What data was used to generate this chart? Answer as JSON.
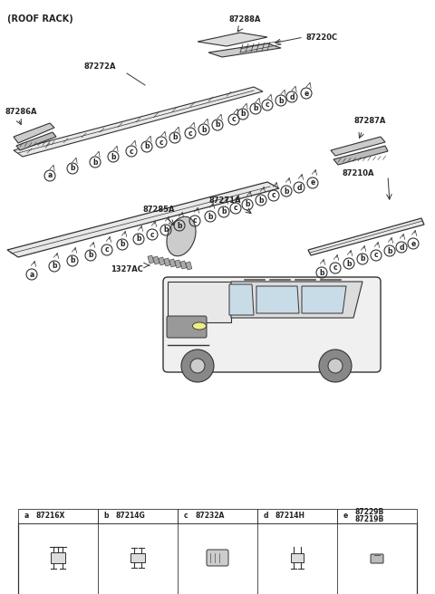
{
  "title": "(ROOF RACK)",
  "bg_color": "#ffffff",
  "line_color": "#333333",
  "part_labels": {
    "top_assembly": "87288A",
    "top_rail_right": "87220C",
    "left_rail_top": "87272A",
    "left_end_cap_top": "87286A",
    "right_end_cap_top": "87287A",
    "right_rail": "87210A",
    "center_cap": "87285A",
    "center_fastener": "1327AC",
    "center_rail": "87271A",
    "left_rail_bottom": "87285A",
    "bottom_legend_a": "87216X",
    "bottom_legend_b": "87214G",
    "bottom_legend_c": "87232A",
    "bottom_legend_d": "87214H",
    "bottom_legend_e1": "87229B",
    "bottom_legend_e2": "87219B"
  },
  "circle_labels": [
    "a",
    "b",
    "c",
    "d",
    "e"
  ],
  "text_color": "#222222",
  "gray_light": "#aaaaaa",
  "gray_mid": "#777777"
}
